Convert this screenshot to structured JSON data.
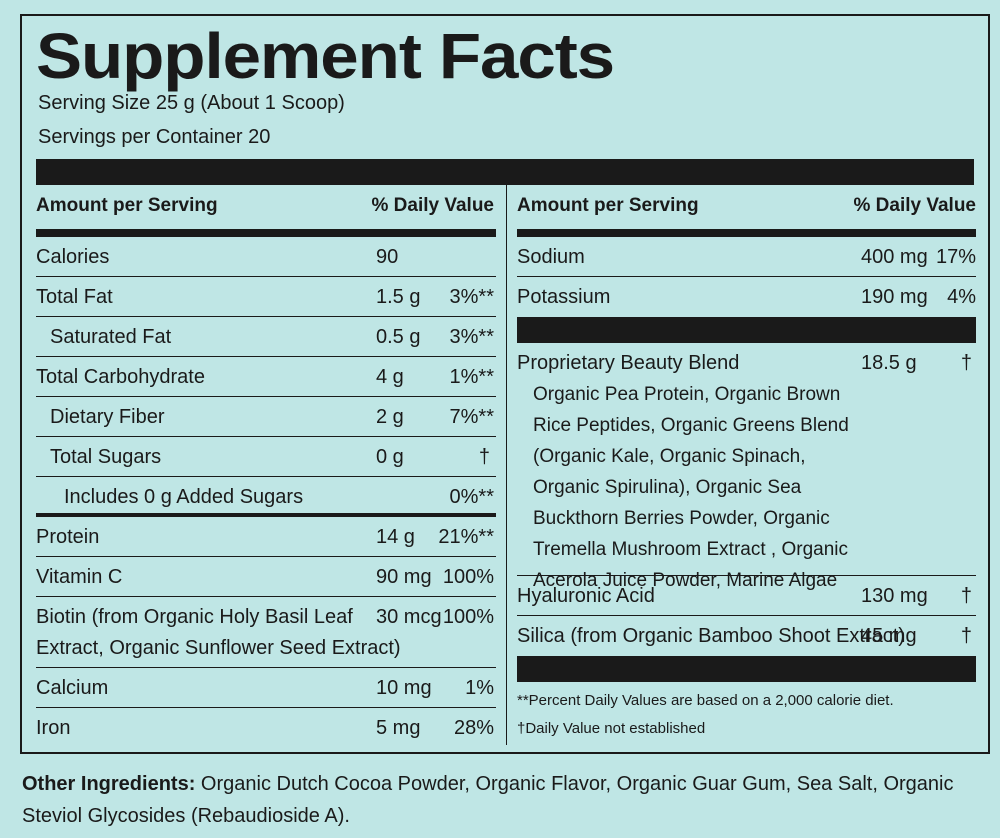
{
  "title": "Supplement Facts",
  "serving_size": "Serving Size 25 g (About 1 Scoop)",
  "servings_per_container": "Servings per Container 20",
  "left": {
    "header": {
      "amount": "Amount per Serving",
      "dv": "% Daily Value"
    },
    "rows": [
      {
        "name": "Calories",
        "amount": "90",
        "dv": ""
      },
      {
        "name": "Total Fat",
        "amount": "1.5 g",
        "dv": "3%**"
      },
      {
        "name": "Saturated Fat",
        "amount": "0.5 g",
        "dv": "3%**"
      },
      {
        "name": "Total Carbohydrate",
        "amount": "4 g",
        "dv": "1%**"
      },
      {
        "name": "Dietary Fiber",
        "amount": "2 g",
        "dv": "7%**"
      },
      {
        "name": "Total Sugars",
        "amount": "0 g",
        "dv": "†"
      },
      {
        "name": "Includes 0 g Added Sugars",
        "amount": "",
        "dv": "0%**"
      },
      {
        "name": "Protein",
        "amount": "14 g",
        "dv": "21%**"
      },
      {
        "name": "Vitamin C",
        "amount": "90 mg",
        "dv": "100%"
      },
      {
        "name_line1": "Biotin (from Organic Holy Basil Leaf",
        "name_line2": "Extract, Organic Sunflower Seed Extract)",
        "amount": "30 mcg",
        "dv": "100%"
      },
      {
        "name": "Calcium",
        "amount": "10 mg",
        "dv": "1%"
      },
      {
        "name": "Iron",
        "amount": "5 mg",
        "dv": "28%"
      }
    ]
  },
  "right": {
    "header": {
      "amount": "Amount per Serving",
      "dv": "% Daily Value"
    },
    "rows": [
      {
        "name": "Sodium",
        "amount": "400 mg",
        "dv": "17%"
      },
      {
        "name": "Potassium",
        "amount": "190 mg",
        "dv": "4%"
      }
    ],
    "blend": {
      "name": "Proprietary Beauty Blend",
      "amount": "18.5 g",
      "dv": "†",
      "ingredients": "Organic Pea Protein, Organic Brown Rice Peptides, Organic Greens Blend (Organic Kale, Organic Spinach, Organic Spirulina), Organic Sea Buckthorn Berries Powder, Organic Tremella Mushroom Extract , Organic Acerola Juice Powder, Marine Algae"
    },
    "rows2": [
      {
        "name": "Hyaluronic Acid",
        "amount": "130 mg",
        "dv": "†"
      },
      {
        "name": "Silica (from Organic Bamboo Shoot Extract)",
        "amount": "45 mg",
        "dv": "†"
      }
    ],
    "footnote1": "**Percent Daily Values are based on a  2,000 calorie diet.",
    "footnote2": "†Daily Value not established"
  },
  "other_ingredients": {
    "label": "Other Ingredients:",
    "text": "Organic Dutch Cocoa Powder, Organic Flavor, Organic Guar Gum, Sea Salt, Organic Steviol Glycosides (Rebaudioside A)."
  }
}
